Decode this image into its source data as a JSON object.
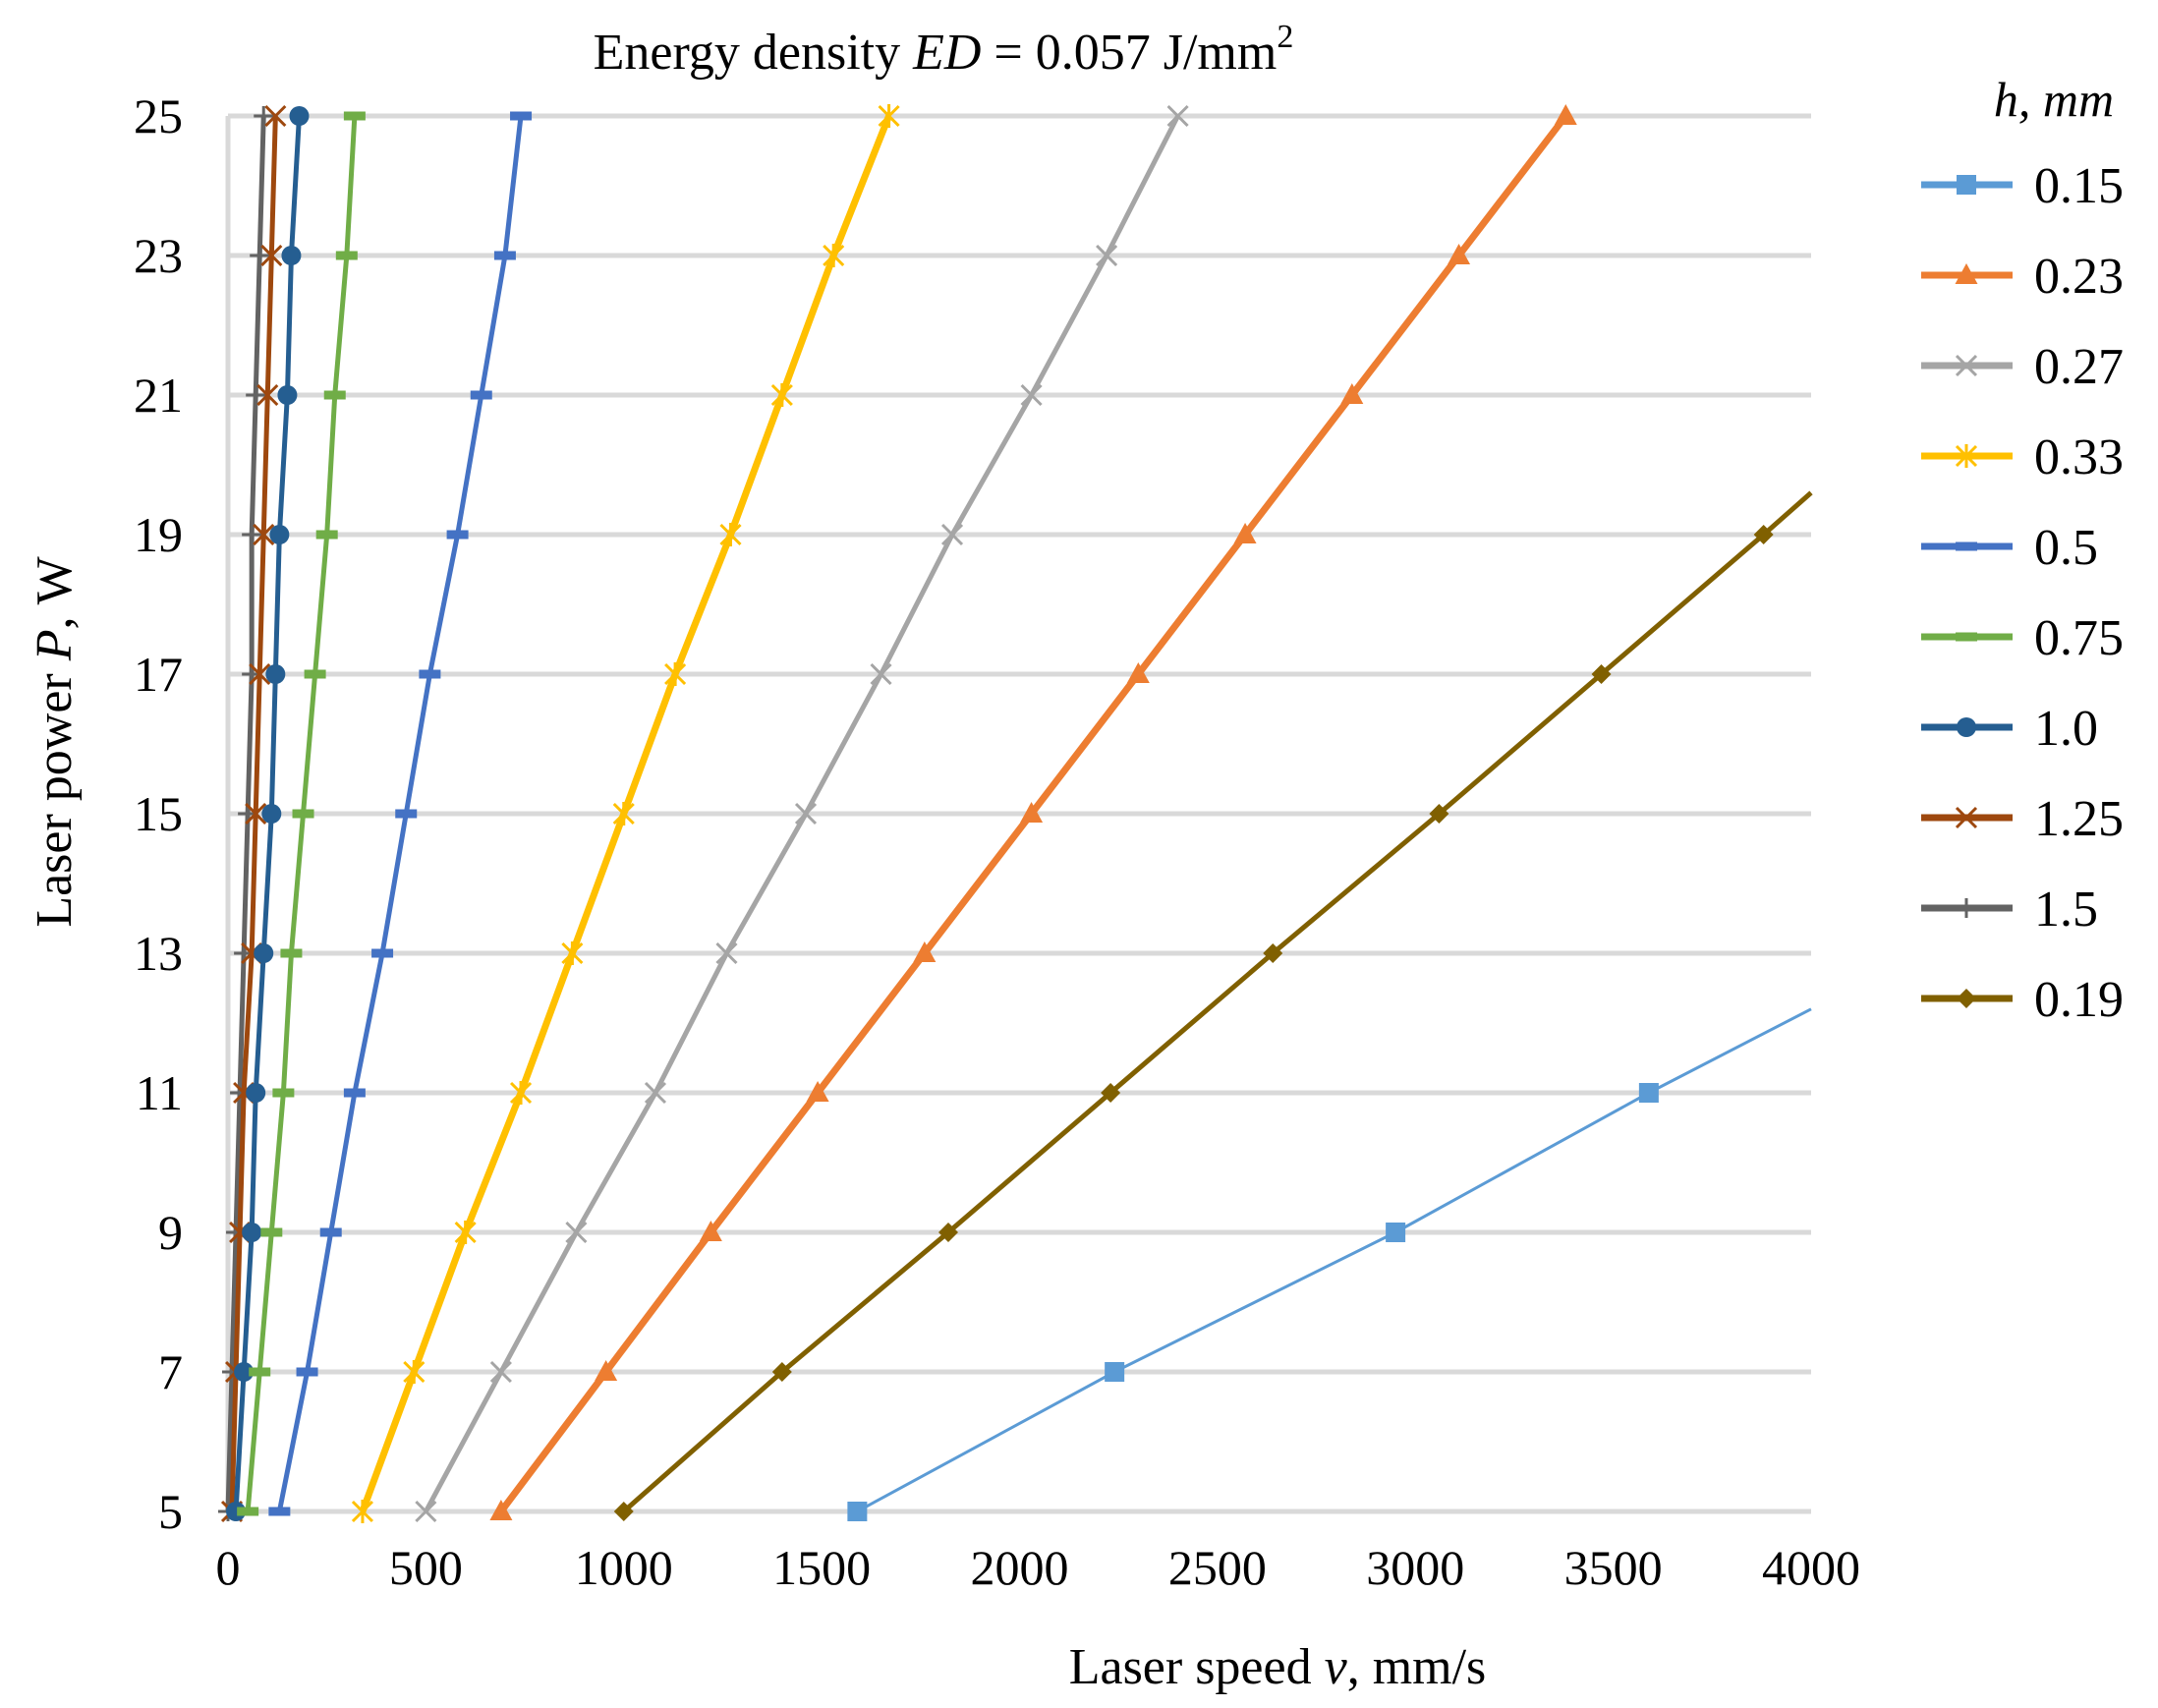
{
  "chart_data": {
    "type": "line",
    "title": {
      "prefix": "Energy density ",
      "var": "ED",
      "suffix": " = 0.057 J/mm",
      "sup": "2"
    },
    "xlabel": {
      "prefix": "Laser speed ",
      "var": "v",
      "suffix": ", mm/s"
    },
    "ylabel": {
      "prefix": "Laser power ",
      "var": "P",
      "suffix": ", W"
    },
    "xlim": [
      0,
      4000
    ],
    "ylim": [
      5,
      25
    ],
    "x_ticks": [
      "0",
      "500",
      "1000",
      "1500",
      "2000",
      "2500",
      "3000",
      "3500",
      "4000"
    ],
    "y_ticks": [
      "5",
      "7",
      "9",
      "11",
      "13",
      "15",
      "17",
      "19",
      "21",
      "23",
      "25"
    ],
    "grid": "horizontal",
    "legend_title": "h, mm",
    "legend_position": "right",
    "series": [
      {
        "name": "0.15",
        "color": "#5b9bd5",
        "marker": "square",
        "width": 3,
        "x": [
          1590,
          2240,
          2950,
          3590
        ],
        "y": [
          5,
          7,
          9,
          11
        ],
        "trend_to": [
          4000,
          12.2
        ]
      },
      {
        "name": "0.23",
        "color": "#ed7d31",
        "marker": "triangle",
        "width": 7,
        "x": [
          690,
          955,
          1220,
          1490,
          1760,
          2030,
          2300,
          2570,
          2840,
          3110,
          3380
        ],
        "y": [
          5,
          7,
          9,
          11,
          13,
          15,
          17,
          19,
          21,
          23,
          25
        ]
      },
      {
        "name": "0.27",
        "color": "#a5a5a5",
        "marker": "x",
        "width": 5,
        "x": [
          500,
          690,
          880,
          1080,
          1260,
          1460,
          1650,
          1830,
          2030,
          2220,
          2400
        ],
        "y": [
          5,
          7,
          9,
          11,
          13,
          15,
          17,
          19,
          21,
          23,
          25
        ]
      },
      {
        "name": "0.33",
        "color": "#ffc000",
        "marker": "star",
        "width": 7,
        "x": [
          340,
          470,
          600,
          740,
          870,
          1000,
          1130,
          1270,
          1400,
          1530,
          1670
        ],
        "y": [
          5,
          7,
          9,
          11,
          13,
          15,
          17,
          19,
          21,
          23,
          25
        ]
      },
      {
        "name": "0.5",
        "color": "#4472c4",
        "marker": "dash",
        "width": 5,
        "x": [
          130,
          200,
          260,
          320,
          390,
          450,
          510,
          580,
          640,
          700,
          740
        ],
        "y": [
          5,
          7,
          9,
          11,
          13,
          15,
          17,
          19,
          21,
          23,
          25
        ]
      },
      {
        "name": "0.75",
        "color": "#70ad47",
        "marker": "dash",
        "width": 5,
        "x": [
          50,
          80,
          110,
          140,
          160,
          190,
          220,
          250,
          270,
          300,
          320
        ],
        "y": [
          5,
          7,
          9,
          11,
          13,
          15,
          17,
          19,
          21,
          23,
          25
        ]
      },
      {
        "name": "1.0",
        "color": "#255e91",
        "marker": "circle",
        "width": 5,
        "x": [
          20,
          40,
          60,
          70,
          90,
          110,
          120,
          130,
          150,
          160,
          180
        ],
        "y": [
          5,
          7,
          9,
          11,
          13,
          15,
          17,
          19,
          21,
          23,
          25
        ]
      },
      {
        "name": "1.25",
        "color": "#9e480e",
        "marker": "x",
        "width": 5,
        "x": [
          10,
          20,
          30,
          40,
          60,
          70,
          80,
          90,
          100,
          110,
          120
        ],
        "y": [
          5,
          7,
          9,
          11,
          13,
          15,
          17,
          19,
          21,
          23,
          25
        ]
      },
      {
        "name": "1.5",
        "color": "#636363",
        "marker": "plus",
        "width": 5,
        "x": [
          0,
          10,
          20,
          30,
          40,
          50,
          60,
          60,
          70,
          80,
          90
        ],
        "y": [
          5,
          7,
          9,
          11,
          13,
          15,
          17,
          19,
          21,
          23,
          25
        ]
      },
      {
        "name": "0.19",
        "color": "#806000",
        "marker": "diamond",
        "width": 5,
        "x": [
          1000,
          1400,
          1820,
          2230,
          2640,
          3060,
          3470,
          3880
        ],
        "y": [
          5,
          7,
          9,
          11,
          13,
          15,
          17,
          19
        ],
        "trend_to": [
          4000,
          19.6
        ]
      }
    ]
  }
}
